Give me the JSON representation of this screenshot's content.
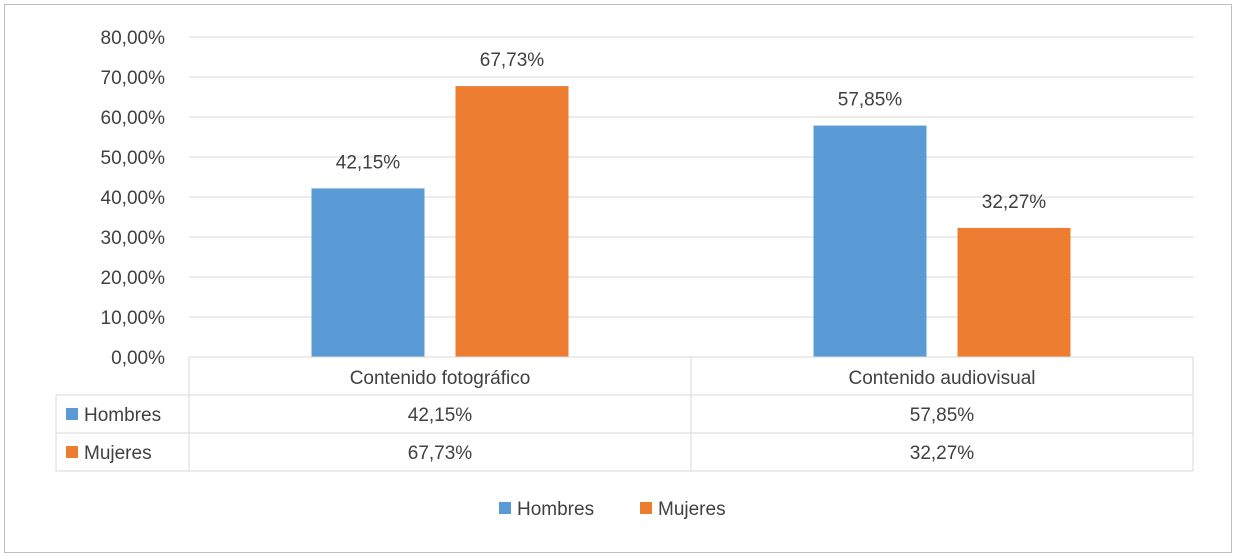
{
  "chart_data": {
    "type": "bar",
    "categories": [
      "Contenido fotográfico",
      "Contenido audiovisual"
    ],
    "series": [
      {
        "name": "Hombres",
        "values": [
          42.15,
          57.85
        ],
        "labels": [
          "42,15%",
          "57,85%"
        ],
        "color": "#5b9bd5"
      },
      {
        "name": "Mujeres",
        "values": [
          67.73,
          32.27
        ],
        "labels": [
          "67,73%",
          "32,27%"
        ],
        "color": "#ed7d31"
      }
    ],
    "y_ticks": [
      "0,00%",
      "10,00%",
      "20,00%",
      "30,00%",
      "40,00%",
      "50,00%",
      "60,00%",
      "70,00%",
      "80,00%"
    ],
    "ylim": [
      0,
      80
    ],
    "grid": true,
    "data_table": true,
    "legend_position": "bottom"
  }
}
